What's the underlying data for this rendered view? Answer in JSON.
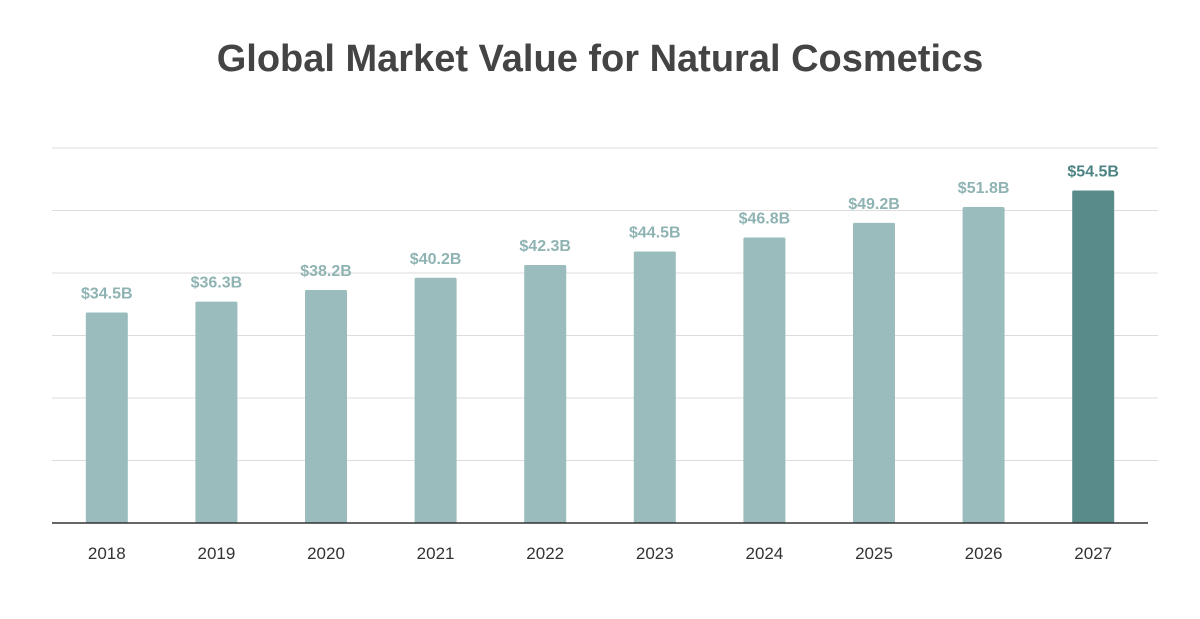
{
  "chart_data": {
    "type": "bar",
    "title": "Global Market Value for Natural Cosmetics",
    "xlabel": "",
    "ylabel": "",
    "categories": [
      "2018",
      "2019",
      "2020",
      "2021",
      "2022",
      "2023",
      "2024",
      "2025",
      "2026",
      "2027"
    ],
    "values": [
      34.5,
      36.3,
      38.2,
      40.2,
      42.3,
      44.5,
      46.8,
      49.2,
      51.8,
      54.5
    ],
    "value_labels": [
      "$34.5B",
      "$36.3B",
      "$38.2B",
      "$40.2B",
      "$42.3B",
      "$44.5B",
      "$46.8B",
      "$49.2B",
      "$51.8B",
      "$54.5B"
    ],
    "unit": "",
    "grid": true,
    "y_axis_labels_shown": false,
    "highlight_category": "2027",
    "colors": {
      "bar": "#9bbcbc",
      "bar_highlight": "#5a8b8b",
      "label": "#8fb3b3",
      "label_highlight": "#4e8383",
      "title": "#444444"
    }
  }
}
